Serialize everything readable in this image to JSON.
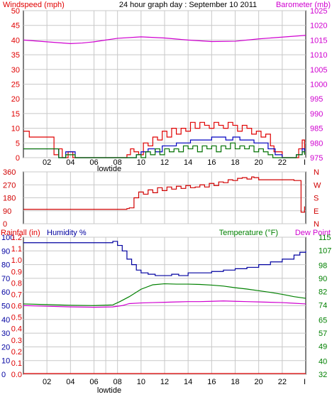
{
  "colors": {
    "wind": "#e00000",
    "gust": "#0000c0",
    "avg_wind": "#007000",
    "barometer": "#d000d0",
    "direction": "#d00000",
    "rainfall": "#e00000",
    "humidity": "#0000a0",
    "temperature": "#008000",
    "dewpoint": "#d000d0",
    "axis": "#000000",
    "grid": "#c8c8c8"
  },
  "chart_data": [
    {
      "type": "line",
      "title": "24 hour graph day : September 10 2011",
      "left_axis_label": "Windspeed (mph)",
      "right_axis_label": "Barometer (mb)",
      "x_ticks": [
        "02",
        "04",
        "06",
        "08",
        "10",
        "12",
        "14",
        "16",
        "18",
        "20",
        "22"
      ],
      "x_marker": "lowtide",
      "x_marker_hour": 7,
      "x_range": [
        0,
        24
      ],
      "left_ylim": [
        0,
        50
      ],
      "left_ticks": [
        0,
        5,
        10,
        15,
        20,
        25,
        30,
        35,
        40,
        45,
        50
      ],
      "right_ylim": [
        975,
        1025
      ],
      "right_ticks": [
        975,
        980,
        985,
        990,
        995,
        1000,
        1005,
        1010,
        1015,
        1020,
        1025
      ],
      "series": [
        {
          "key": "wind",
          "axis": "left",
          "step": true,
          "x": [
            0,
            0.5,
            1.4,
            2.4,
            2.6,
            3.0,
            3.3,
            3.8,
            4.2,
            4.5,
            5.0,
            6.0,
            7.0,
            8.0,
            8.8,
            9.1,
            9.4,
            9.8,
            10.2,
            10.6,
            11.0,
            11.4,
            11.8,
            12.2,
            12.6,
            13.0,
            13.4,
            13.8,
            14.2,
            14.6,
            15.0,
            15.4,
            15.8,
            16.2,
            16.6,
            17.0,
            17.4,
            17.8,
            18.2,
            18.6,
            19.0,
            19.4,
            19.8,
            20.2,
            20.6,
            21.0,
            21.3,
            22.0,
            23.0,
            23.4,
            23.7,
            23.9
          ],
          "y": [
            9,
            7,
            7,
            7,
            1,
            3,
            0,
            2,
            0,
            0,
            0,
            0,
            0,
            0,
            1,
            3,
            2,
            1,
            5,
            4,
            7,
            6,
            9,
            7,
            10,
            8,
            10,
            9,
            12,
            10,
            12,
            11,
            10,
            12,
            11,
            10,
            12,
            11,
            9,
            11,
            10,
            8,
            9,
            7,
            8,
            4,
            2,
            0,
            0,
            3,
            6,
            2
          ]
        },
        {
          "key": "gust",
          "axis": "left",
          "step": true,
          "x": [
            0,
            2.5,
            3.0,
            3.6,
            4.4,
            5,
            8,
            9,
            9.6,
            10.0,
            10.6,
            11.2,
            11.8,
            12.4,
            13.0,
            13.6,
            14.2,
            14.8,
            15.4,
            16.0,
            16.6,
            17.2,
            17.8,
            18.4,
            19.0,
            19.6,
            20.2,
            20.8,
            21.4,
            22,
            23.2,
            23.7,
            23.9
          ],
          "y": [
            3,
            3,
            0,
            2,
            0,
            0,
            0,
            0,
            1,
            2,
            3,
            2,
            4,
            4,
            5,
            5,
            6,
            6,
            6,
            7,
            7,
            6,
            7,
            6,
            6,
            5,
            5,
            3,
            1,
            0,
            1,
            3,
            2
          ]
        },
        {
          "key": "avg_wind",
          "axis": "left",
          "step": true,
          "x": [
            0,
            2.6,
            3.0,
            3.6,
            4.4,
            5,
            8,
            9,
            9.6,
            10.0,
            10.4,
            10.8,
            11.2,
            11.6,
            12.0,
            12.4,
            12.8,
            13.2,
            13.6,
            14.0,
            14.4,
            14.8,
            15.2,
            15.6,
            16.0,
            16.4,
            16.8,
            17.2,
            17.6,
            18.0,
            18.4,
            18.8,
            19.2,
            19.6,
            20.0,
            20.4,
            20.8,
            21.2,
            22,
            23.2,
            23.7,
            23.9
          ],
          "y": [
            3,
            3,
            0,
            1,
            0,
            0,
            0,
            0,
            1,
            0,
            2,
            1,
            3,
            1,
            3,
            2,
            3,
            2,
            4,
            3,
            4,
            2,
            4,
            3,
            4,
            2,
            4,
            3,
            5,
            3,
            4,
            3,
            4,
            2,
            3,
            2,
            1,
            0,
            0,
            1,
            2,
            1
          ]
        },
        {
          "key": "barometer",
          "axis": "right",
          "step": false,
          "x": [
            0,
            2,
            4,
            5,
            6,
            7,
            8,
            10,
            12,
            14,
            16,
            18,
            20,
            22,
            24
          ],
          "y": [
            1015.0,
            1014.4,
            1013.8,
            1014.0,
            1014.4,
            1015.0,
            1015.6,
            1016.1,
            1015.7,
            1015.0,
            1014.5,
            1014.6,
            1015.4,
            1016.0,
            1016.6
          ]
        }
      ]
    },
    {
      "type": "line",
      "title": "",
      "left_ylim": [
        0,
        360
      ],
      "left_ticks": [
        0,
        90,
        180,
        270,
        360
      ],
      "right_tick_labels": [
        "N",
        "W",
        "S",
        "E",
        "N"
      ],
      "x_range": [
        0,
        24
      ],
      "series": [
        {
          "key": "direction",
          "axis": "left",
          "step": true,
          "x": [
            0,
            8.8,
            9.0,
            9.4,
            9.8,
            10.2,
            10.6,
            11.0,
            11.4,
            11.8,
            12.2,
            12.6,
            13.0,
            13.4,
            13.8,
            14.2,
            14.6,
            15.0,
            15.4,
            15.8,
            16.2,
            16.6,
            17.0,
            17.4,
            17.8,
            18.2,
            18.6,
            19.0,
            19.4,
            19.6,
            20.0,
            21.0,
            22.0,
            23.0,
            23.5,
            23.6,
            23.9
          ],
          "y": [
            100,
            105,
            110,
            180,
            220,
            205,
            235,
            215,
            250,
            230,
            255,
            240,
            260,
            245,
            265,
            250,
            255,
            270,
            255,
            280,
            265,
            290,
            285,
            305,
            300,
            315,
            320,
            310,
            325,
            320,
            305,
            305,
            305,
            300,
            300,
            80,
            120
          ]
        }
      ]
    },
    {
      "type": "line",
      "title": "",
      "left_axis_label": "Rainfall (in)",
      "left2_axis_label": "Humidity %",
      "right_axis_label": "Temperature (°F)",
      "right2_axis_label": "Dew Point",
      "x_ticks": [
        "02",
        "04",
        "06",
        "08",
        "10",
        "12",
        "14",
        "16",
        "18",
        "20",
        "22"
      ],
      "x_marker": "lowtide",
      "x_marker_hour": 7,
      "x_range": [
        0,
        24
      ],
      "rain_ticks": [
        "0.0",
        "0.1",
        "0.2",
        "0.3",
        "0.4",
        "0.5",
        "0.6",
        "0.7",
        "0.8",
        "0.9",
        "1.0",
        "1.1",
        "1.2"
      ],
      "humidity_ticks": [
        0,
        10,
        20,
        30,
        40,
        50,
        60,
        70,
        80,
        90,
        100
      ],
      "humidity_ylim": [
        0,
        100
      ],
      "temperature_ticks": [
        32,
        40,
        49,
        57,
        65,
        74,
        82,
        90,
        98,
        107,
        115
      ],
      "temperature_ylim": [
        32,
        115
      ],
      "series": [
        {
          "key": "rainfall",
          "axis": "rain",
          "step": true,
          "x": [
            0,
            24
          ],
          "y": [
            0.0,
            0.0
          ]
        },
        {
          "key": "humidity",
          "axis": "humidity",
          "step": true,
          "x": [
            0,
            2,
            4,
            6,
            7.6,
            8.0,
            8.4,
            8.8,
            9.2,
            9.6,
            10.0,
            10.6,
            11.2,
            12.0,
            12.6,
            13.2,
            14.0,
            15.0,
            16.0,
            17.0,
            18.0,
            19.0,
            20.0,
            21.0,
            22.0,
            23.0,
            23.5,
            24
          ],
          "y": [
            96,
            96,
            96,
            96,
            97,
            94,
            90,
            84,
            80,
            76,
            74,
            73,
            72,
            72,
            73,
            72,
            74,
            74,
            75,
            76,
            77,
            78,
            80,
            82,
            84,
            87,
            89,
            90
          ]
        },
        {
          "key": "temperature",
          "axis": "temperature",
          "step": false,
          "x": [
            0,
            2,
            4,
            6,
            7.6,
            8.2,
            9.0,
            10.0,
            11.0,
            12.0,
            13.0,
            14.0,
            15.0,
            16.0,
            17.0,
            18.0,
            19.0,
            20.0,
            21.0,
            22.0,
            23.0,
            24
          ],
          "y": [
            74.6,
            74.2,
            73.8,
            73.6,
            74.0,
            76.0,
            79.0,
            83.5,
            86.2,
            86.8,
            86.6,
            86.6,
            86.4,
            86.0,
            85.4,
            84.4,
            83.6,
            82.6,
            81.6,
            80.4,
            79.0,
            78.0
          ]
        },
        {
          "key": "dewpoint",
          "axis": "temperature",
          "step": false,
          "x": [
            0,
            2,
            4,
            6,
            7.6,
            8.4,
            9.0,
            10.0,
            11.0,
            12.0,
            13.0,
            14.0,
            15.0,
            16.0,
            17.0,
            18.0,
            19.0,
            20.0,
            21.0,
            22.0,
            23.0,
            24
          ],
          "y": [
            73.6,
            73.2,
            72.8,
            72.6,
            72.8,
            73.6,
            74.8,
            75.2,
            75.4,
            75.6,
            75.8,
            76.0,
            76.0,
            76.2,
            76.4,
            76.2,
            76.0,
            75.8,
            75.6,
            75.4,
            75.0,
            74.6
          ]
        }
      ]
    }
  ]
}
